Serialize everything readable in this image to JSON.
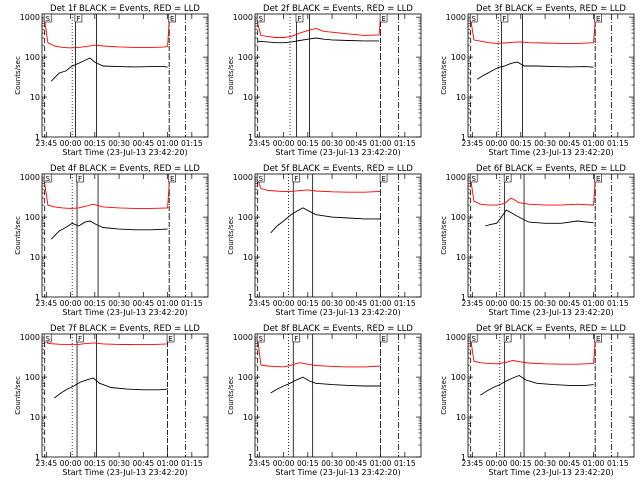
{
  "page": {
    "background": "#ffffff"
  },
  "chart_data": [
    {
      "type": "line",
      "title": "Det 1f BLACK = Events, RED = LLD",
      "xlabel": "Start Time (23-Jul-13 23:42:20)",
      "ylabel": "Counts/sec",
      "x_ticks": [
        "23:45",
        "00:00",
        "00:15",
        "00:30",
        "00:45",
        "01:00",
        "01:15"
      ],
      "y_ticks": [
        "1",
        "10",
        "100",
        "1000"
      ],
      "ylog": true,
      "ylim": [
        1,
        1200
      ],
      "xlim": [
        "23:42:20",
        "01:25"
      ],
      "markers": {
        "S": "23:44",
        "F": "00:03",
        "E": "01:01"
      },
      "vlines": {
        "dashed": [
          "23:44",
          "01:01"
        ],
        "dotted": [
          "00:01",
          "01:01"
        ],
        "solid": [
          "00:03",
          "00:16"
        ],
        "dashdot": [
          "01:11"
        ]
      },
      "series": [
        {
          "name": "Events",
          "color": "#000000",
          "x": [
            "23:48",
            "23:53",
            "23:57",
            "00:01",
            "00:05",
            "00:08",
            "00:12",
            "00:15",
            "00:20",
            "00:30",
            "00:40",
            "00:50",
            "00:58",
            "01:00"
          ],
          "y": [
            25,
            40,
            45,
            60,
            70,
            80,
            95,
            75,
            60,
            58,
            57,
            58,
            58,
            56
          ]
        },
        {
          "name": "LLD",
          "color": "#ff0000",
          "x": [
            "23:44",
            "23:46",
            "23:50",
            "23:55",
            "00:00",
            "00:05",
            "00:10",
            "00:15",
            "00:20",
            "00:30",
            "00:40",
            "00:50",
            "00:58",
            "01:00",
            "01:01"
          ],
          "y": [
            800,
            230,
            190,
            175,
            170,
            175,
            185,
            200,
            190,
            180,
            175,
            175,
            178,
            185,
            800
          ]
        }
      ]
    },
    {
      "type": "line",
      "title": "Det 2f BLACK = Events, RED = LLD",
      "xlabel": "Start Time (23-Jul-13 23:42:20)",
      "ylabel": "Counts/sec",
      "x_ticks": [
        "23:45",
        "00:00",
        "00:15",
        "00:30",
        "00:45",
        "01:00",
        "01:15"
      ],
      "y_ticks": [
        "1",
        "10",
        "100",
        "1000"
      ],
      "ylog": true,
      "ylim": [
        1,
        1200
      ],
      "xlim": [
        "23:42:20",
        "01:25"
      ],
      "markers": {
        "S": "23:44",
        "F": "00:08",
        "E": "01:00"
      },
      "vlines": {
        "dashed": [
          "23:44",
          "01:00"
        ],
        "dotted": [
          "00:04",
          "01:00"
        ],
        "solid": [
          "00:08",
          "00:16"
        ],
        "dashdot": [
          "01:11"
        ]
      },
      "series": [
        {
          "name": "Events",
          "color": "#000000",
          "x": [
            "23:44",
            "23:50",
            "23:55",
            "00:00",
            "00:05",
            "00:10",
            "00:15",
            "00:20",
            "00:25",
            "00:30",
            "00:40",
            "00:50",
            "00:59"
          ],
          "y": [
            250,
            240,
            230,
            230,
            240,
            260,
            280,
            300,
            280,
            270,
            260,
            255,
            255
          ]
        },
        {
          "name": "LLD",
          "color": "#ff0000",
          "x": [
            "23:44",
            "23:46",
            "23:50",
            "23:55",
            "00:00",
            "00:05",
            "00:10",
            "00:15",
            "00:20",
            "00:25",
            "00:30",
            "00:40",
            "00:50",
            "00:59",
            "01:00"
          ],
          "y": [
            700,
            350,
            330,
            310,
            310,
            330,
            400,
            460,
            520,
            440,
            420,
            380,
            350,
            360,
            1000
          ]
        }
      ]
    },
    {
      "type": "line",
      "title": "Det 3f BLACK = Events, RED = LLD",
      "xlabel": "Start Time (23-Jul-13 23:42:20)",
      "ylabel": "Counts/sec",
      "x_ticks": [
        "23:45",
        "00:00",
        "00:15",
        "00:30",
        "00:45",
        "01:00",
        "01:15"
      ],
      "y_ticks": [
        "1",
        "10",
        "100",
        "1000"
      ],
      "ylog": true,
      "ylim": [
        1,
        1200
      ],
      "xlim": [
        "23:42:20",
        "01:25"
      ],
      "markers": {
        "S": "23:44",
        "F": "00:03",
        "E": "01:01"
      },
      "vlines": {
        "dashed": [
          "23:44",
          "01:01"
        ],
        "dotted": [
          "00:01",
          "01:01"
        ],
        "solid": [
          "00:03",
          "00:16"
        ],
        "dashdot": [
          "01:11"
        ]
      },
      "series": [
        {
          "name": "Events",
          "color": "#000000",
          "x": [
            "23:48",
            "23:52",
            "23:57",
            "00:01",
            "00:05",
            "00:09",
            "00:13",
            "00:17",
            "00:25",
            "00:35",
            "00:45",
            "00:55",
            "01:00"
          ],
          "y": [
            28,
            35,
            45,
            55,
            60,
            70,
            75,
            60,
            60,
            58,
            57,
            58,
            56
          ]
        },
        {
          "name": "LLD",
          "color": "#ff0000",
          "x": [
            "23:44",
            "23:46",
            "23:50",
            "23:55",
            "00:00",
            "00:05",
            "00:10",
            "00:15",
            "00:20",
            "00:30",
            "00:40",
            "00:50",
            "01:00",
            "01:01"
          ],
          "y": [
            900,
            270,
            250,
            230,
            220,
            225,
            235,
            240,
            230,
            225,
            220,
            220,
            230,
            900
          ]
        }
      ]
    },
    {
      "type": "line",
      "title": "Det 4f BLACK = Events, RED = LLD",
      "xlabel": "Start Time (23-Jul-13 23:42:20)",
      "ylabel": "Counts/sec",
      "x_ticks": [
        "23:45",
        "00:00",
        "00:15",
        "00:30",
        "00:45",
        "01:00",
        "01:15"
      ],
      "y_ticks": [
        "1",
        "10",
        "100",
        "1000"
      ],
      "ylog": true,
      "ylim": [
        1,
        1200
      ],
      "xlim": [
        "23:42:20",
        "01:25"
      ],
      "markers": {
        "S": "23:44",
        "F": "00:04",
        "E": "01:01"
      },
      "vlines": {
        "dashed": [
          "23:44",
          "01:01"
        ],
        "dotted": [
          "00:01",
          "01:01"
        ],
        "solid": [
          "00:04",
          "00:17"
        ],
        "dashdot": [
          "01:11"
        ]
      },
      "series": [
        {
          "name": "Events",
          "color": "#000000",
          "x": [
            "23:48",
            "23:53",
            "23:57",
            "00:01",
            "00:05",
            "00:09",
            "00:12",
            "00:16",
            "00:20",
            "00:30",
            "00:40",
            "00:50",
            "01:00"
          ],
          "y": [
            28,
            45,
            55,
            70,
            60,
            75,
            80,
            65,
            55,
            50,
            48,
            48,
            50
          ]
        },
        {
          "name": "LLD",
          "color": "#ff0000",
          "x": [
            "23:44",
            "23:46",
            "23:50",
            "23:55",
            "00:00",
            "00:05",
            "00:10",
            "00:14",
            "00:20",
            "00:30",
            "00:40",
            "00:50",
            "01:00",
            "01:01"
          ],
          "y": [
            700,
            200,
            180,
            170,
            165,
            170,
            190,
            210,
            180,
            170,
            165,
            165,
            170,
            700
          ]
        }
      ]
    },
    {
      "type": "line",
      "title": "Det 5f BLACK = Events, RED = LLD",
      "xlabel": "Start Time (23-Jul-13 23:42:20)",
      "ylabel": "Counts/sec",
      "x_ticks": [
        "23:45",
        "00:00",
        "00:15",
        "00:30",
        "00:45",
        "01:00",
        "01:15"
      ],
      "y_ticks": [
        "1",
        "10",
        "100",
        "1000"
      ],
      "ylog": true,
      "ylim": [
        1,
        1200
      ],
      "xlim": [
        "23:42:20",
        "01:25"
      ],
      "markers": {
        "S": "23:44",
        "F": "00:06",
        "E": "01:00"
      },
      "vlines": {
        "dashed": [
          "23:44",
          "01:00"
        ],
        "dotted": [
          "00:03",
          "01:00"
        ],
        "solid": [
          "00:06",
          "00:18"
        ],
        "dashdot": [
          "01:11"
        ]
      },
      "series": [
        {
          "name": "Events",
          "color": "#000000",
          "x": [
            "23:52",
            "23:56",
            "00:00",
            "00:04",
            "00:08",
            "00:12",
            "00:16",
            "00:20",
            "00:30",
            "00:40",
            "00:50",
            "01:00"
          ],
          "y": [
            40,
            60,
            80,
            110,
            140,
            170,
            140,
            115,
            100,
            95,
            90,
            90
          ]
        },
        {
          "name": "LLD",
          "color": "#ff0000",
          "x": [
            "23:44",
            "23:46",
            "23:50",
            "23:55",
            "00:00",
            "00:05",
            "00:10",
            "00:15",
            "00:20",
            "00:30",
            "00:40",
            "00:50",
            "01:00"
          ],
          "y": [
            900,
            520,
            470,
            450,
            440,
            440,
            460,
            480,
            450,
            430,
            420,
            420,
            440
          ]
        }
      ]
    },
    {
      "type": "line",
      "title": "Det 6f BLACK = Events, RED = LLD",
      "xlabel": "Start Time (23-Jul-13 23:42:20)",
      "ylabel": "Counts/sec",
      "x_ticks": [
        "23:45",
        "00:00",
        "00:15",
        "00:30",
        "00:45",
        "01:00",
        "01:15"
      ],
      "y_ticks": [
        "1",
        "10",
        "100",
        "1000"
      ],
      "ylog": true,
      "ylim": [
        1,
        1200
      ],
      "xlim": [
        "23:42:20",
        "01:25"
      ],
      "markers": {
        "S": "23:44",
        "F": "00:05",
        "E": "01:01"
      },
      "vlines": {
        "dashed": [
          "23:44",
          "01:01"
        ],
        "dotted": [
          "00:02",
          "01:01"
        ],
        "solid": [
          "00:05",
          "00:17"
        ],
        "dashdot": [
          "01:11"
        ]
      },
      "series": [
        {
          "name": "Events",
          "color": "#000000",
          "x": [
            "23:53",
            "23:56",
            "00:00",
            "00:03",
            "00:06",
            "00:09",
            "00:12",
            "00:16",
            "00:20",
            "00:30",
            "00:40",
            "00:50",
            "01:00"
          ],
          "y": [
            60,
            65,
            70,
            100,
            150,
            130,
            110,
            90,
            75,
            70,
            70,
            80,
            72
          ]
        },
        {
          "name": "LLD",
          "color": "#ff0000",
          "x": [
            "23:44",
            "23:46",
            "23:50",
            "23:55",
            "00:00",
            "00:05",
            "00:09",
            "00:14",
            "00:20",
            "00:30",
            "00:40",
            "00:50",
            "01:00",
            "01:01"
          ],
          "y": [
            900,
            250,
            210,
            200,
            200,
            220,
            300,
            230,
            210,
            200,
            200,
            210,
            200,
            900
          ]
        }
      ]
    },
    {
      "type": "line",
      "title": "Det 7f BLACK = Events, RED = LLD",
      "xlabel": "Start Time (23-Jul-13 23:42:20)",
      "ylabel": "Counts/sec",
      "x_ticks": [
        "23:45",
        "00:00",
        "00:15",
        "00:30",
        "00:45",
        "01:00",
        "01:15"
      ],
      "y_ticks": [
        "1",
        "10",
        "100",
        "1000"
      ],
      "ylog": true,
      "ylim": [
        1,
        1200
      ],
      "xlim": [
        "23:42:20",
        "01:25"
      ],
      "markers": {
        "S": "23:44",
        "F": "00:04",
        "E": "01:00"
      },
      "vlines": {
        "dashed": [
          "23:44",
          "01:00"
        ],
        "dotted": [
          "00:01",
          "01:00"
        ],
        "solid": [
          "00:04",
          "00:16"
        ],
        "dashdot": [
          "01:11"
        ]
      },
      "series": [
        {
          "name": "Events",
          "color": "#000000",
          "x": [
            "23:50",
            "23:54",
            "23:58",
            "00:02",
            "00:06",
            "00:10",
            "00:14",
            "00:18",
            "00:25",
            "00:35",
            "00:45",
            "00:55",
            "01:00"
          ],
          "y": [
            30,
            40,
            50,
            60,
            75,
            85,
            95,
            70,
            55,
            50,
            48,
            48,
            50
          ]
        },
        {
          "name": "LLD",
          "color": "#ff0000",
          "x": [
            "23:44",
            "23:46",
            "23:50",
            "23:55",
            "00:00",
            "00:05",
            "00:10",
            "00:15",
            "00:20",
            "00:30",
            "00:40",
            "00:50",
            "01:00"
          ],
          "y": [
            1000,
            700,
            680,
            660,
            650,
            660,
            700,
            720,
            680,
            660,
            650,
            650,
            680
          ]
        }
      ]
    },
    {
      "type": "line",
      "title": "Det 8f BLACK = Events, RED = LLD",
      "xlabel": "Start Time (23-Jul-13 23:42:20)",
      "ylabel": "Counts/sec",
      "x_ticks": [
        "23:45",
        "00:00",
        "00:15",
        "00:30",
        "00:45",
        "01:00",
        "01:15"
      ],
      "y_ticks": [
        "1",
        "10",
        "100",
        "1000"
      ],
      "ylog": true,
      "ylim": [
        1,
        1200
      ],
      "xlim": [
        "23:42:20",
        "01:25"
      ],
      "markers": {
        "S": "23:44",
        "F": "00:06",
        "E": "01:00"
      },
      "vlines": {
        "dashed": [
          "23:44",
          "01:00"
        ],
        "dotted": [
          "00:03",
          "01:00"
        ],
        "solid": [
          "00:06",
          "00:18"
        ],
        "dashdot": [
          "01:11"
        ]
      },
      "series": [
        {
          "name": "Events",
          "color": "#000000",
          "x": [
            "23:52",
            "23:56",
            "00:00",
            "00:04",
            "00:08",
            "00:12",
            "00:16",
            "00:20",
            "00:30",
            "00:40",
            "00:50",
            "01:00"
          ],
          "y": [
            40,
            50,
            60,
            70,
            85,
            100,
            80,
            70,
            65,
            62,
            60,
            60
          ]
        },
        {
          "name": "LLD",
          "color": "#ff0000",
          "x": [
            "23:44",
            "23:46",
            "23:50",
            "23:55",
            "00:00",
            "00:05",
            "00:10",
            "00:15",
            "00:20",
            "00:30",
            "00:40",
            "00:50",
            "01:00"
          ],
          "y": [
            900,
            200,
            190,
            185,
            180,
            200,
            230,
            210,
            195,
            185,
            180,
            180,
            190
          ]
        }
      ]
    },
    {
      "type": "line",
      "title": "Det 9f BLACK = Events, RED = LLD",
      "xlabel": "Start Time (23-Jul-13 23:42:20)",
      "ylabel": "Counts/sec",
      "x_ticks": [
        "23:45",
        "00:00",
        "00:15",
        "00:30",
        "00:45",
        "01:00",
        "01:15"
      ],
      "y_ticks": [
        "1",
        "10",
        "100",
        "1000"
      ],
      "ylog": true,
      "ylim": [
        1,
        1200
      ],
      "xlim": [
        "23:42:20",
        "01:25"
      ],
      "markers": {
        "S": "23:44",
        "F": "00:05",
        "E": "01:01"
      },
      "vlines": {
        "dashed": [
          "23:44",
          "01:01"
        ],
        "dotted": [
          "00:02",
          "01:01"
        ],
        "solid": [
          "00:05",
          "00:17"
        ],
        "dashdot": [
          "01:11"
        ]
      },
      "series": [
        {
          "name": "Events",
          "color": "#000000",
          "x": [
            "23:50",
            "23:54",
            "23:58",
            "00:02",
            "00:06",
            "00:10",
            "00:14",
            "00:18",
            "00:25",
            "00:35",
            "00:45",
            "00:55",
            "01:00"
          ],
          "y": [
            35,
            45,
            55,
            65,
            80,
            95,
            110,
            85,
            70,
            65,
            62,
            62,
            65
          ]
        },
        {
          "name": "LLD",
          "color": "#ff0000",
          "x": [
            "23:44",
            "23:46",
            "23:50",
            "23:55",
            "00:00",
            "00:05",
            "00:10",
            "00:15",
            "00:20",
            "00:30",
            "00:40",
            "00:50",
            "01:00",
            "01:01"
          ],
          "y": [
            900,
            250,
            230,
            220,
            215,
            230,
            260,
            240,
            225,
            215,
            210,
            210,
            220,
            900
          ]
        }
      ]
    }
  ]
}
